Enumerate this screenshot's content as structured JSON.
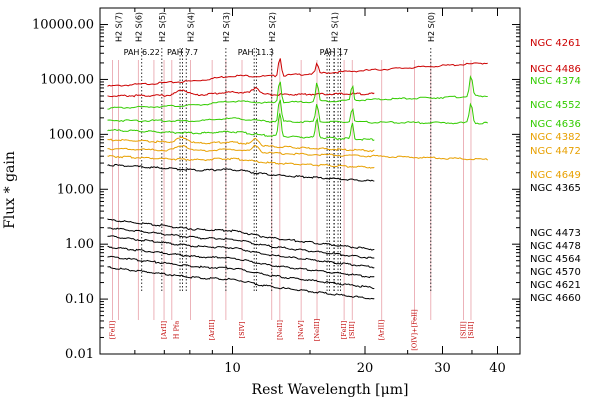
{
  "chart_data": {
    "type": "line",
    "xlabel": "Rest Wavelength [μm]",
    "ylabel": "Flux * gain",
    "x_scale": "log",
    "y_scale": "log",
    "xlim": [
      5.0,
      45.0
    ],
    "ylim": [
      0.01,
      20000
    ],
    "x_ticks": [
      {
        "value": 10,
        "label": "10"
      },
      {
        "value": 20,
        "label": "20"
      },
      {
        "value": 30,
        "label": "30"
      },
      {
        "value": 40,
        "label": "40"
      }
    ],
    "y_ticks": [
      {
        "value": 10000,
        "label": "10000.00"
      },
      {
        "value": 1000,
        "label": "1000.00"
      },
      {
        "value": 100,
        "label": "100.00"
      },
      {
        "value": 10,
        "label": "10.00"
      },
      {
        "value": 1,
        "label": "1.00"
      },
      {
        "value": 0.1,
        "label": "0.10"
      },
      {
        "value": 0.01,
        "label": "0.01"
      }
    ],
    "colors": {
      "red": "#cc0000",
      "green": "#33cc00",
      "orange": "#e8a000",
      "black": "#000000",
      "line_marker": "#e8a0a8"
    },
    "series": [
      {
        "name": "NGC 4261",
        "color": "red",
        "x_range": [
          5.2,
          38
        ],
        "base": 750,
        "end": 2000,
        "bumps": "h2strong"
      },
      {
        "name": "NGC 4486",
        "color": "red",
        "x_range": [
          5.2,
          21
        ],
        "base": 500,
        "end": 550,
        "bumps": "pah"
      },
      {
        "name": "NGC 4374",
        "color": "green",
        "x_range": [
          5.2,
          38
        ],
        "base": 300,
        "end": 500,
        "bumps": "ne"
      },
      {
        "name": "NGC 4552",
        "color": "green",
        "x_range": [
          5.2,
          38
        ],
        "base": 180,
        "end": 160,
        "bumps": "ne"
      },
      {
        "name": "NGC 4636",
        "color": "green",
        "x_range": [
          5.2,
          21
        ],
        "base": 120,
        "end": 80,
        "bumps": "ne"
      },
      {
        "name": "NGC 4382",
        "color": "orange",
        "x_range": [
          5.2,
          21
        ],
        "base": 80,
        "end": 50,
        "bumps": "pah"
      },
      {
        "name": "NGC 4472",
        "color": "orange",
        "x_range": [
          5.2,
          38
        ],
        "base": 55,
        "end": 35,
        "bumps": "pah"
      },
      {
        "name": "NGC 4649",
        "color": "orange",
        "x_range": [
          5.2,
          21
        ],
        "base": 40,
        "end": 25,
        "bumps": "none"
      },
      {
        "name": "NGC 4365",
        "color": "black",
        "x_range": [
          5.2,
          21
        ],
        "base": 28,
        "end": 14,
        "bumps": "none"
      },
      {
        "name": "NGC 4473",
        "color": "black",
        "x_range": [
          5.2,
          21
        ],
        "base": 2.8,
        "end": 0.8,
        "bumps": "none"
      },
      {
        "name": "NGC 4478",
        "color": "black",
        "x_range": [
          5.2,
          21
        ],
        "base": 2.0,
        "end": 0.55,
        "bumps": "none"
      },
      {
        "name": "NGC 4564",
        "color": "black",
        "x_range": [
          5.2,
          21
        ],
        "base": 1.4,
        "end": 0.38,
        "bumps": "none"
      },
      {
        "name": "NGC 4570",
        "color": "black",
        "x_range": [
          5.2,
          21
        ],
        "base": 0.9,
        "end": 0.25,
        "bumps": "none"
      },
      {
        "name": "NGC 4621",
        "color": "black",
        "x_range": [
          5.2,
          21
        ],
        "base": 0.6,
        "end": 0.16,
        "bumps": "none"
      },
      {
        "name": "NGC 4660",
        "color": "black",
        "x_range": [
          5.2,
          21
        ],
        "base": 0.38,
        "end": 0.1,
        "bumps": "none"
      }
    ],
    "emission_lines_solid": [
      5.34,
      5.51,
      6.63,
      6.99,
      8.99,
      10.51,
      12.81,
      14.32,
      15.56,
      17.93,
      18.71,
      21.83,
      25.9,
      33.48,
      34.82,
      28.22,
      12.28,
      9.66,
      8.03,
      7.28,
      6.11
    ],
    "emission_lines_dotted": [
      6.22,
      7.6,
      7.7,
      7.85,
      11.2,
      11.33,
      16.4,
      16.6,
      17.0,
      17.37,
      17.6,
      6.91,
      9.66,
      12.28,
      17.03,
      28.22
    ],
    "top_labels": [
      {
        "x": 5.51,
        "label": "H2 S(7)"
      },
      {
        "x": 6.11,
        "label": "H2 S(6)"
      },
      {
        "x": 6.22,
        "label": "PAH 6.22"
      },
      {
        "x": 6.91,
        "label": "H2 S(5)"
      },
      {
        "x": 7.7,
        "label": "PAH 7.7"
      },
      {
        "x": 8.03,
        "label": "H2 S(4)"
      },
      {
        "x": 9.66,
        "label": "H2 S(3)"
      },
      {
        "x": 11.3,
        "label": "PAH 11.3"
      },
      {
        "x": 12.28,
        "label": "H2 S(2)"
      },
      {
        "x": 17,
        "label": "PAH 17"
      },
      {
        "x": 17.03,
        "label": "H2 S(1)"
      },
      {
        "x": 28.22,
        "label": "H2 S(0)"
      }
    ],
    "bottom_labels": [
      {
        "x": 5.34,
        "label": "[FeII]"
      },
      {
        "x": 6.99,
        "label": "[ArII]"
      },
      {
        "x": 7.46,
        "label": "H Pfa"
      },
      {
        "x": 8.99,
        "label": "[ArIII]"
      },
      {
        "x": 10.51,
        "label": "[SIV]"
      },
      {
        "x": 12.81,
        "label": "[NeII]"
      },
      {
        "x": 14.32,
        "label": "[NeV]"
      },
      {
        "x": 15.56,
        "label": "[NeIII]"
      },
      {
        "x": 17.93,
        "label": "[FeII]"
      },
      {
        "x": 18.71,
        "label": "[SIII]"
      },
      {
        "x": 21.83,
        "label": "[ArIII]"
      },
      {
        "x": 25.9,
        "label": "[OIV]+[FeII]"
      },
      {
        "x": 33.48,
        "label": "[SIII]"
      },
      {
        "x": 34.82,
        "label": "[SiII]"
      }
    ]
  }
}
